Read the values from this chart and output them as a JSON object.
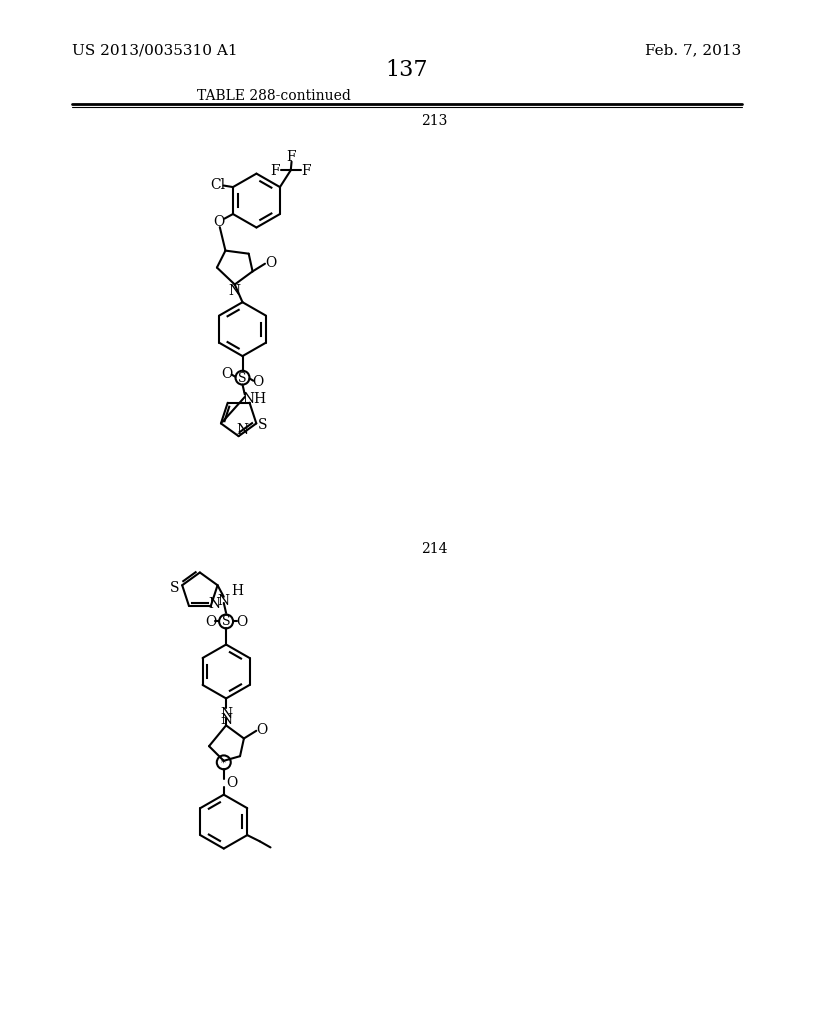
{
  "background_color": "#ffffff",
  "page_header_left": "US 2013/0035310 A1",
  "page_header_right": "Feb. 7, 2013",
  "page_number": "137",
  "table_title": "TABLE 288-continued",
  "compound_213_label": "213",
  "compound_214_label": "214"
}
